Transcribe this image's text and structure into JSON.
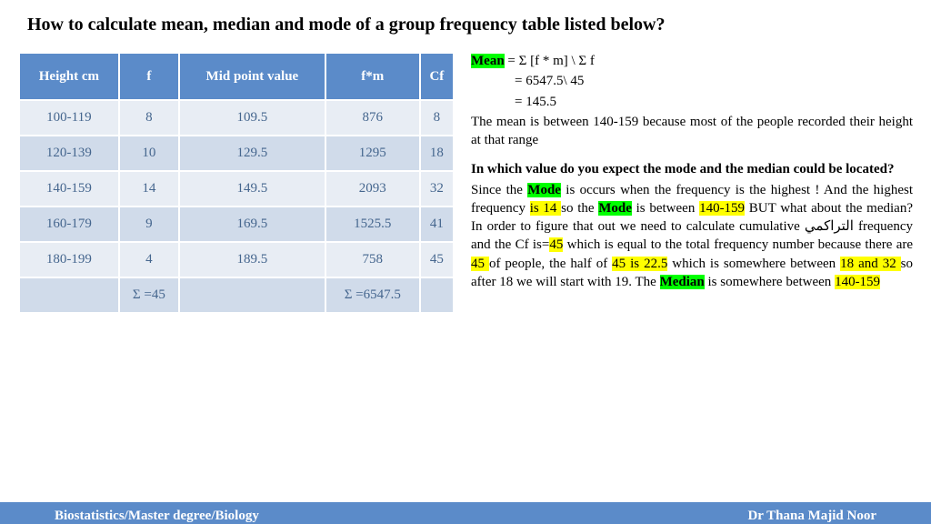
{
  "title": "How to calculate mean, median and mode of a group frequency table listed below?",
  "table": {
    "headers": [
      "Height cm",
      "f",
      "Mid point value",
      "f*m",
      "Cf"
    ],
    "rows": [
      [
        "100-119",
        "8",
        "109.5",
        "876",
        "8"
      ],
      [
        "120-139",
        "10",
        "129.5",
        "1295",
        "18"
      ],
      [
        "140-159",
        "14",
        "149.5",
        "2093",
        "32"
      ],
      [
        "160-179",
        "9",
        "169.5",
        "1525.5",
        "41"
      ],
      [
        "180-199",
        "4",
        "189.5",
        "758",
        "45"
      ],
      [
        "",
        "Σ =45",
        "",
        "Σ =6547.5",
        ""
      ]
    ]
  },
  "mean": {
    "label": "Mean",
    "formula": " = Σ [f * m] \\ Σ f",
    "step1": "= 6547.5\\ 45",
    "step2": "= 145.5",
    "note": "The mean is between 140-159 because most of the people recorded their height at that range"
  },
  "question": "In which value do you expect the mode and the median could be located?",
  "body": {
    "t1": "Since the ",
    "mode1": "Mode",
    "t2": " is occurs when the frequency is the highest ! And the highest frequency ",
    "is14": "is 14 ",
    "t3": "so the ",
    "mode2": "Mode",
    "t4": " is between ",
    "range1": "140-159",
    "t5": " BUT what about the median? In order to figure that out we need to calculate cumulative التراكمي frequency and the Cf is=",
    "n45a": "45",
    "t6": " which is equal to the total frequency number because there are ",
    "n45b": "45 ",
    "t7": "of people, the half of ",
    "half": "45 is 22.5",
    "t8": " which is somewhere between ",
    "range2": "18 and 32 ",
    "t9": "so after 18 we will start with 19. The ",
    "median": "Median",
    "t10": " is somewhere between ",
    "range3": "140-159"
  },
  "footer": {
    "left": "Biostatistics/Master degree/Biology",
    "right": "Dr Thana Majid Noor"
  },
  "colors": {
    "header_bg": "#5b8bc9",
    "row_odd": "#e8edf4",
    "row_even": "#d0dbea",
    "cell_text": "#45668e",
    "hl_green": "#00ff00",
    "hl_yellow": "#ffff00"
  }
}
